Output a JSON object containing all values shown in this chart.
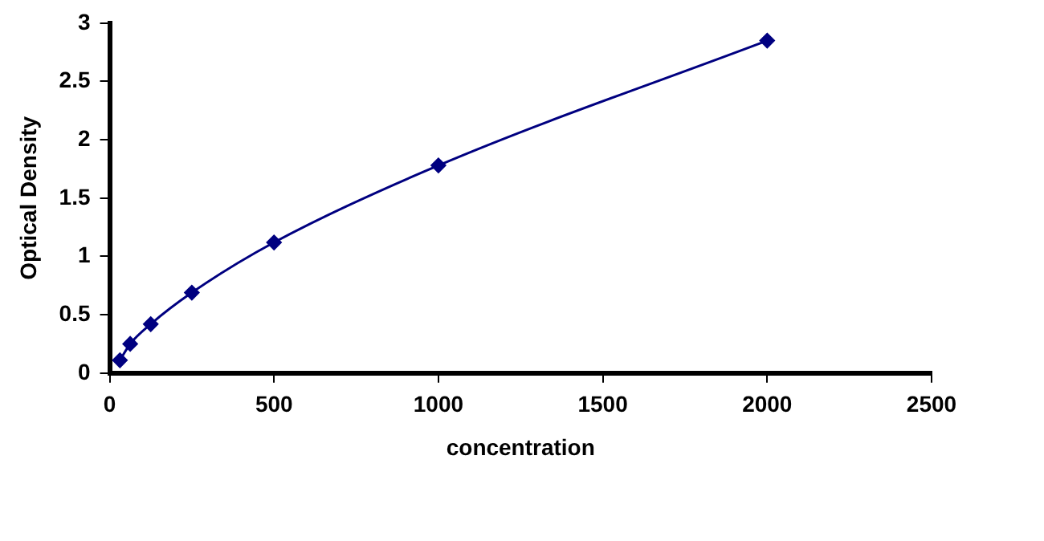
{
  "chart_data": {
    "type": "line",
    "xlabel": "concentration",
    "ylabel": "Optical Density",
    "x": [
      31.25,
      62.5,
      125,
      250,
      500,
      1000,
      2000
    ],
    "series": [
      {
        "color": "#000080",
        "values": [
          0.11,
          0.25,
          0.42,
          0.69,
          1.12,
          1.78,
          2.85
        ]
      }
    ],
    "xlim": [
      0,
      2500
    ],
    "xticks": [
      0,
      500,
      1000,
      1500,
      2000,
      2500
    ],
    "ylim": [
      0,
      3
    ],
    "yticks": [
      0,
      0.5,
      1,
      1.5,
      2,
      2.5,
      3
    ],
    "grid": false,
    "legend": false,
    "marker": "diamond",
    "line_style": "solid"
  }
}
